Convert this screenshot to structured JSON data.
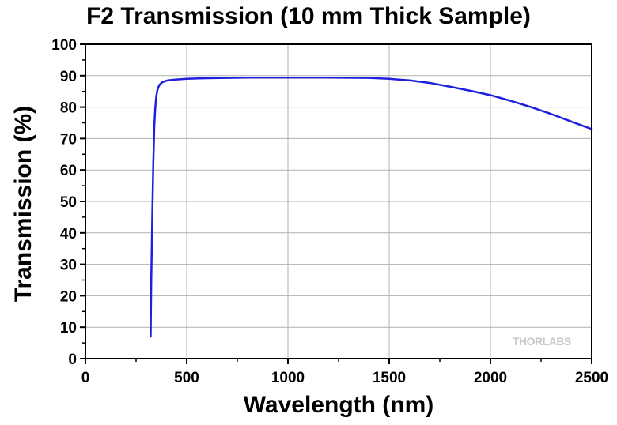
{
  "chart_data": {
    "type": "line",
    "title": "F2 Transmission (10 mm Thick Sample)",
    "xlabel": "Wavelength (nm)",
    "ylabel": "Transmission (%)",
    "xlim": [
      0,
      2500
    ],
    "ylim": [
      0,
      100
    ],
    "xticks": [
      0,
      500,
      1000,
      1500,
      2000,
      2500
    ],
    "yticks": [
      0,
      10,
      20,
      30,
      40,
      50,
      60,
      70,
      80,
      90,
      100
    ],
    "grid": true,
    "watermark": "THORLABS",
    "line_color": "#1f1fe0",
    "series": [
      {
        "values_x": [
          322,
          325,
          330,
          335,
          340,
          345,
          350,
          355,
          360,
          365,
          370,
          380,
          390,
          400,
          420,
          450,
          500,
          600,
          700,
          800,
          1000,
          1200,
          1400,
          1500,
          1600,
          1700,
          1800,
          1900,
          2000,
          2100,
          2200,
          2300,
          2400,
          2500
        ],
        "values_y": [
          7,
          25,
          45,
          62,
          74,
          80,
          83.5,
          85.3,
          86.3,
          87,
          87.4,
          87.9,
          88.2,
          88.4,
          88.6,
          88.8,
          89,
          89.2,
          89.3,
          89.4,
          89.4,
          89.4,
          89.3,
          89,
          88.5,
          87.7,
          86.5,
          85.2,
          83.8,
          82,
          80,
          77.8,
          75.4,
          73
        ]
      }
    ]
  }
}
